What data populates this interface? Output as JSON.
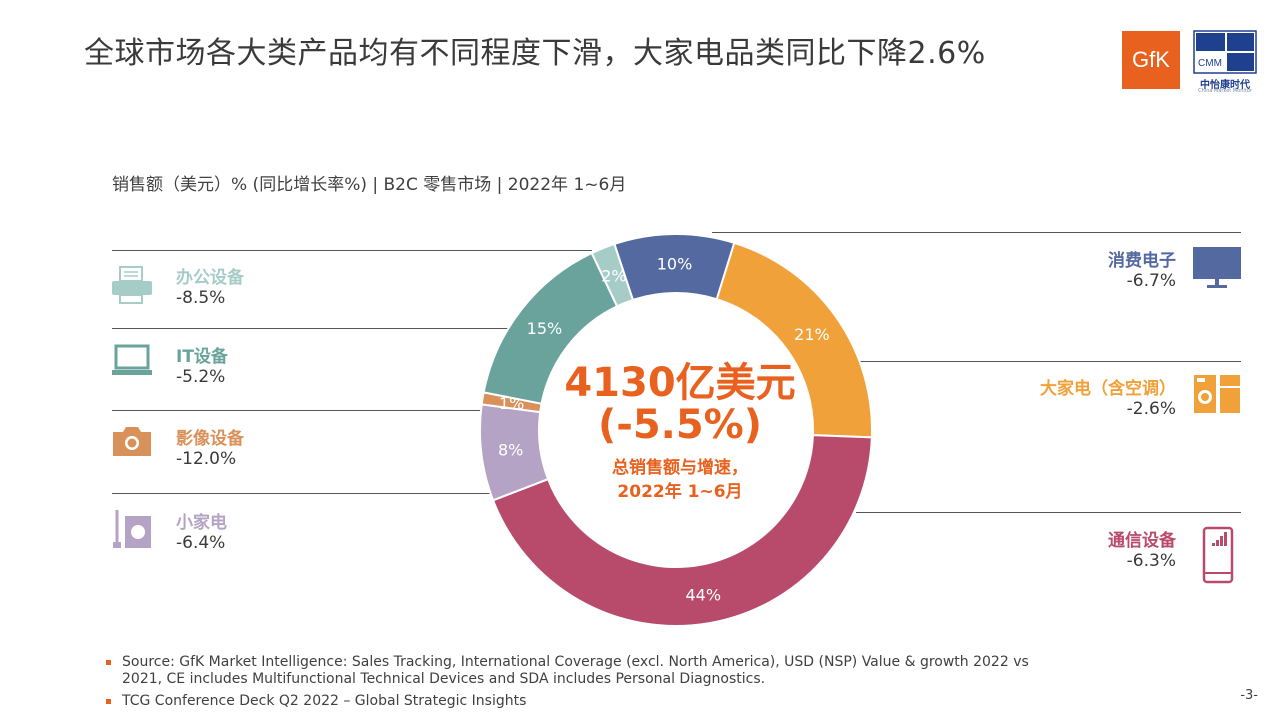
{
  "header": {
    "title": "全球市场各大类产品均有不同程度下滑，大家电品类同比下降2.6%",
    "gfk_logo": "GfK",
    "cmm_logo": "CMM",
    "cmm_name": "中怡康时代",
    "cmm_sub": "China Market Monitor"
  },
  "subtitle": "销售额（美元）% (同比增长率%) | B2C 零售市场 |  2022年 1~6月",
  "center": {
    "value": "4130亿美元",
    "growth": "(-5.5%)",
    "label_line1": "总销售额与增速，",
    "label_line2": "2022年 1~6月"
  },
  "categories_left": [
    {
      "name": "办公设备",
      "growth": "-8.5%",
      "color": "#a6ccc8",
      "icon": "printer-icon"
    },
    {
      "name": "IT设备",
      "growth": "-5.2%",
      "color": "#6aa39c",
      "icon": "laptop-icon"
    },
    {
      "name": "影像设备",
      "growth": "-12.0%",
      "color": "#d9915a",
      "icon": "camera-icon"
    },
    {
      "name": "小家电",
      "growth": "-6.4%",
      "color": "#b5a3c6",
      "icon": "mixer-icon"
    }
  ],
  "categories_right": [
    {
      "name": "消费电子",
      "growth": "-6.7%",
      "color": "#5469a0",
      "icon": "tv-icon"
    },
    {
      "name": "大家电（含空调）",
      "growth": "-2.6%",
      "color": "#f0a13a",
      "icon": "appliance-icon"
    },
    {
      "name": "通信设备",
      "growth": "-6.3%",
      "color": "#b84b6c",
      "icon": "phone-icon"
    }
  ],
  "chart_data": {
    "type": "pie",
    "donut": true,
    "slices": [
      {
        "name": "消费电子",
        "value": 10,
        "label": "10%",
        "color": "#5469a0"
      },
      {
        "name": "大家电（含空调）",
        "value": 21,
        "label": "21%",
        "color": "#f0a13a"
      },
      {
        "name": "通信设备",
        "value": 44,
        "label": "44%",
        "color": "#b84b6c"
      },
      {
        "name": "小家电",
        "value": 8,
        "label": "8%",
        "color": "#b5a3c6"
      },
      {
        "name": "影像设备",
        "value": 1,
        "label": "1%",
        "color": "#d9915a"
      },
      {
        "name": "IT设备",
        "value": 15,
        "label": "15%",
        "color": "#6aa39c"
      },
      {
        "name": "办公设备",
        "value": 2,
        "label": "2%",
        "color": "#a6ccc8"
      }
    ]
  },
  "footnotes": [
    "Source: GfK Market Intelligence: Sales Tracking, International Coverage (excl. North America), USD (NSP) Value & growth 2022 vs 2021, CE includes Multifunctional Technical Devices and SDA includes Personal Diagnostics.",
    "TCG Conference Deck Q2 2022 – Global Strategic Insights"
  ],
  "page_number": "-3-"
}
